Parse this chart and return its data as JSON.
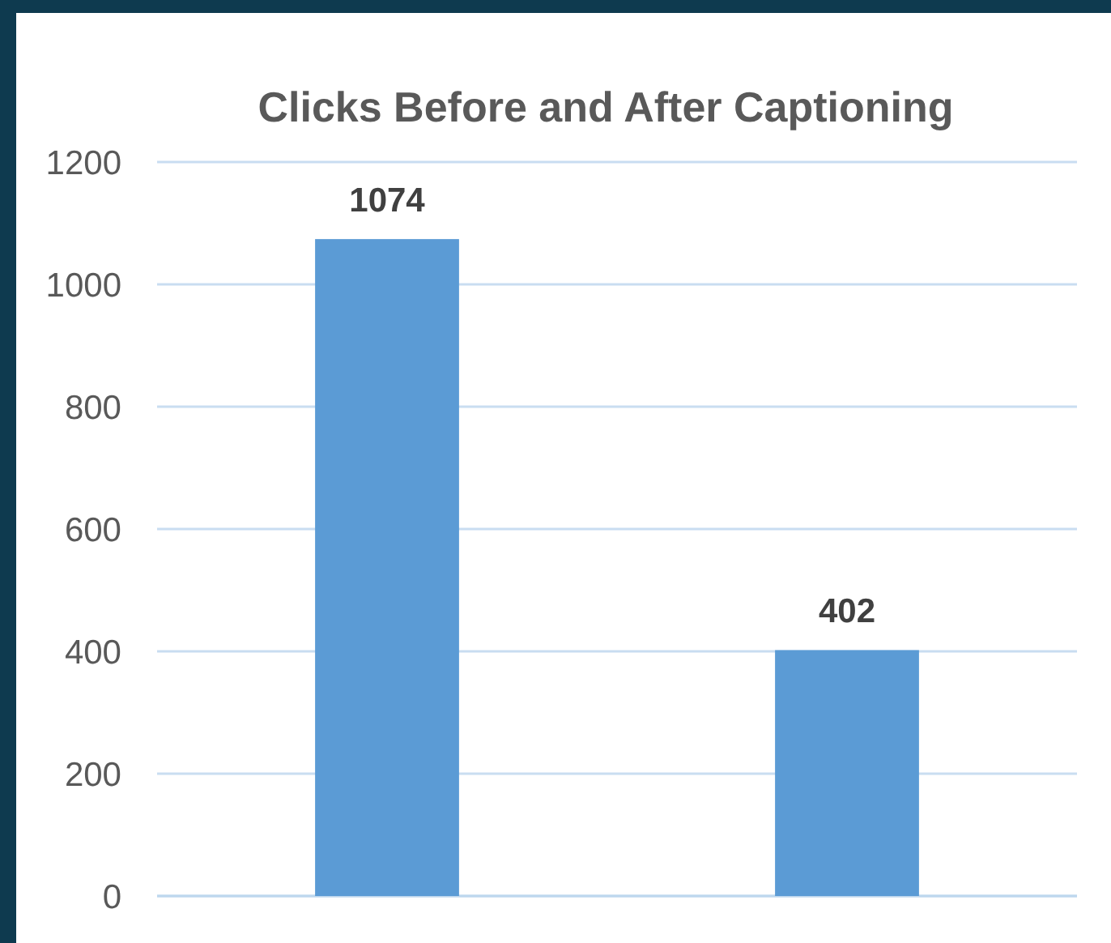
{
  "chart_data": {
    "type": "bar",
    "title": "Clicks Before and After Captioning",
    "categories": [
      null,
      null
    ],
    "values": [
      1074,
      402
    ],
    "color": "#5b9bd5",
    "ylim": [
      0,
      1200
    ],
    "yticks": [
      0,
      200,
      400,
      600,
      800,
      1000,
      1200
    ],
    "grid": "y",
    "tick_labels": "y",
    "data_labels": true
  }
}
